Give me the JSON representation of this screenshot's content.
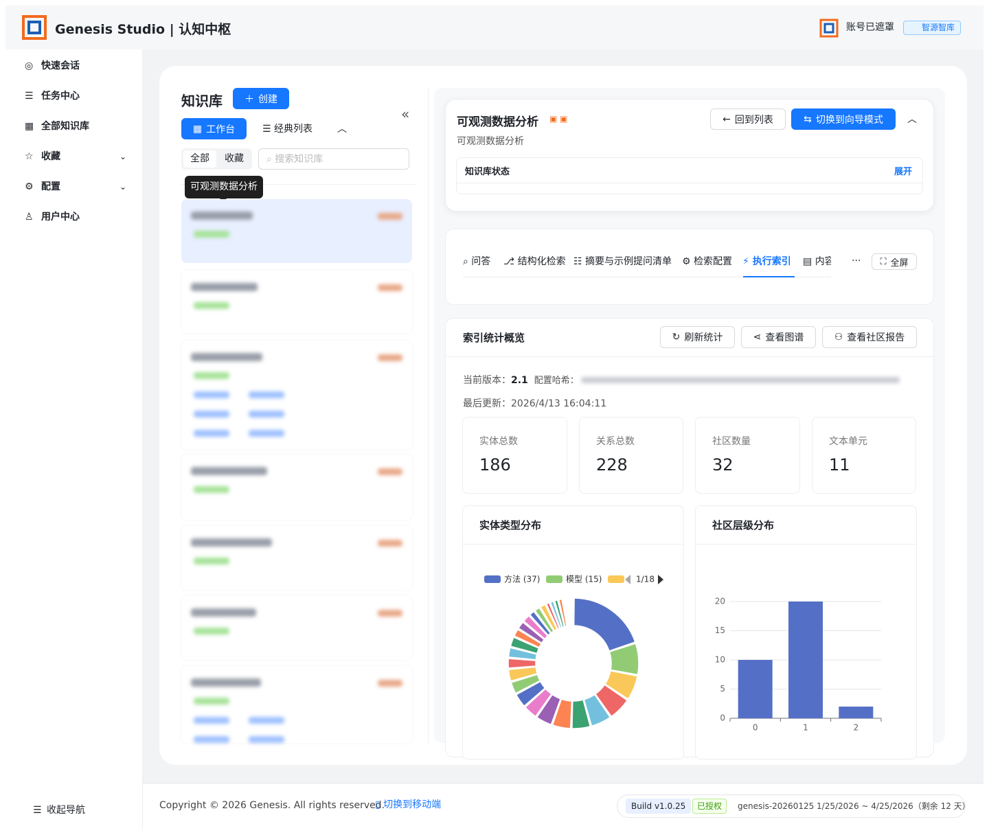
{
  "header": {
    "brand": "Genesis Studio | 认知中枢",
    "account": "账号已遮罩",
    "badge": "智源智库"
  },
  "sidebar": {
    "items": [
      "快速会话",
      "任务中心",
      "全部知识库",
      "收藏",
      "配置",
      "用户中心"
    ],
    "collapse": "收起导航"
  },
  "kb_panel": {
    "title": "知识库",
    "create": "创建",
    "views": [
      "工作台",
      "经典列表"
    ],
    "filters": [
      "全部",
      "收藏"
    ],
    "search_placeholder": "搜索知识库",
    "tooltip": "可观测数据分析"
  },
  "detail": {
    "title": "可观测数据分析",
    "subtitle": "可观测数据分析",
    "back": "回到列表",
    "switch_mode": "切换到向导模式",
    "status_title": "知识库状态",
    "expand": "展开"
  },
  "tabs": {
    "items": [
      "问答",
      "结构化检索",
      "摘要与示例提问清单",
      "检索配置",
      "执行索引",
      "内容"
    ],
    "more": "···",
    "fullscreen": "全屏"
  },
  "index_overview": {
    "title": "索引统计概览",
    "actions": [
      "刷新统计",
      "查看图谱",
      "查看社区报告"
    ],
    "version_label": "当前版本：",
    "version": "2.1",
    "hash_label": "配置哈希：",
    "updated_label": "最后更新：",
    "updated": "2026/4/13 16:04:11",
    "stats": [
      {
        "label": "实体总数",
        "value": 186
      },
      {
        "label": "关系总数",
        "value": 228
      },
      {
        "label": "社区数量",
        "value": 32
      },
      {
        "label": "文本单元",
        "value": 11
      }
    ]
  },
  "entity_chart": {
    "type": "pie",
    "title": "实体类型分布",
    "legend_labels": [
      "方法 (37)",
      "模型 (15)"
    ],
    "legend_page": "1/18",
    "values": [
      37,
      15,
      12,
      11,
      10,
      9,
      9,
      8,
      7,
      7,
      6,
      6,
      5,
      5,
      5,
      4,
      4,
      4,
      3,
      3,
      3,
      2,
      2,
      2,
      2,
      1,
      1,
      1,
      1,
      1
    ],
    "colors": [
      "#5470c6",
      "#91cc75",
      "#fac858",
      "#ee6666",
      "#73c0de",
      "#3ba272",
      "#fc8452",
      "#9a60b4",
      "#ea7ccc"
    ]
  },
  "community_chart": {
    "type": "bar",
    "title": "社区层级分布",
    "categories": [
      "0",
      "1",
      "2"
    ],
    "values": [
      10,
      20,
      2
    ],
    "color": "#5470c6",
    "ylim": [
      0,
      20
    ],
    "yticks": [
      0,
      5,
      10,
      15,
      20
    ],
    "grid": true
  },
  "footer": {
    "copyright": "Copyright © 2026 Genesis. All rights reserved.",
    "mobile": "切换到移动端",
    "build": "Build v1.0.25",
    "license": "已授权",
    "license_info": "genesis-20260125 1/25/2026 ~ 4/25/2026（剩余 12 天）"
  }
}
